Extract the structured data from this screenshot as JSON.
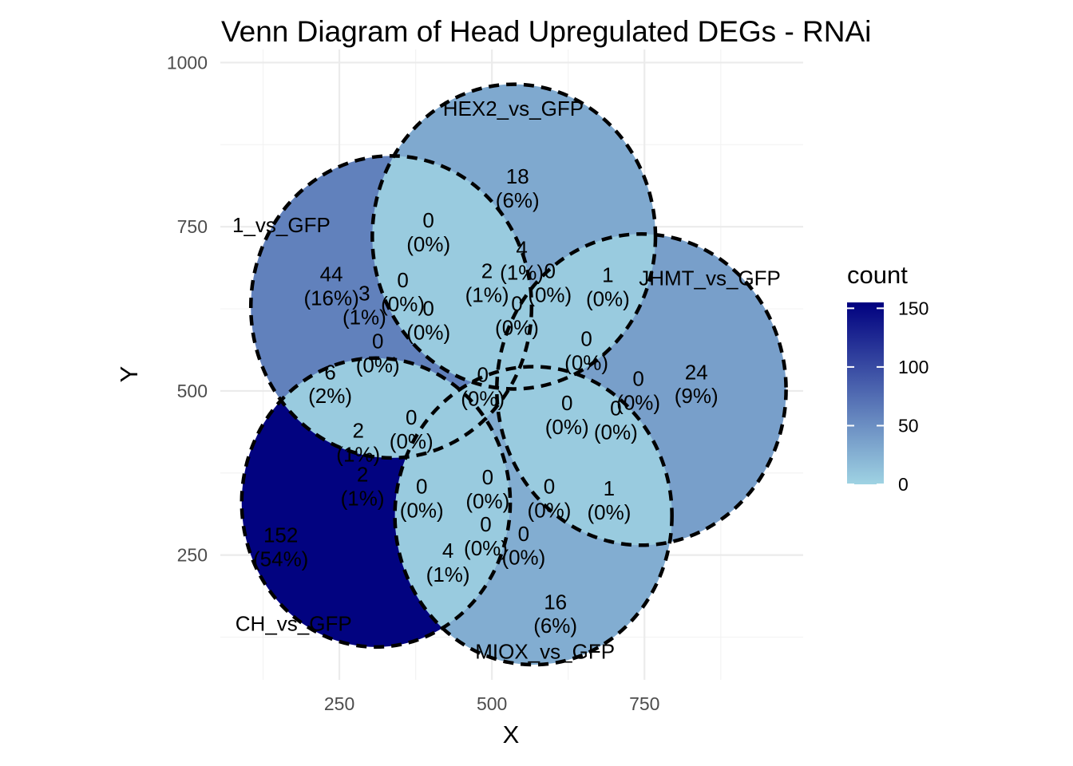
{
  "chart_data": {
    "type": "venn",
    "title": "Venn Diagram of Head Upregulated DEGs - RNAi",
    "xlabel": "X",
    "ylabel": "Y",
    "xlim": [
      55,
      1010
    ],
    "ylim": [
      60,
      1020
    ],
    "x_ticks": [
      250,
      500,
      750
    ],
    "y_ticks": [
      250,
      500,
      750,
      1000
    ],
    "grid": true,
    "legend": {
      "title": "count",
      "placement": "right",
      "min": 0,
      "max": 155,
      "ticks": [
        0,
        50,
        100,
        150
      ],
      "color_low": "#9fd3e3",
      "color_high": "#00007f"
    },
    "sets": [
      {
        "name": "HEX2_vs_GFP",
        "count": 18,
        "percent": "(6%)",
        "label_x": 535,
        "label_y": 919,
        "cx": 536,
        "cy": 735,
        "r": 232
      },
      {
        "name": "JHMT_vs_GFP",
        "count": 24,
        "percent": "(9%)",
        "label_x": 857,
        "label_y": 661,
        "cx": 745,
        "cy": 502,
        "r": 237
      },
      {
        "name": "MIOX_vs_GFP",
        "count": 16,
        "percent": "(6%)",
        "label_x": 587,
        "label_y": 92,
        "cx": 568,
        "cy": 310,
        "r": 227
      },
      {
        "name": "CH_vs_GFP",
        "count": 152,
        "percent": "(54%)",
        "label_x": 175,
        "label_y": 135,
        "cx": 310,
        "cy": 330,
        "r": 220
      },
      {
        "name": "1_vs_GFP",
        "count": 44,
        "percent": "(16%)",
        "label_x": 155,
        "label_y": 742,
        "cx": 335,
        "cy": 628,
        "r": 230
      }
    ],
    "regions": [
      {
        "count": "18",
        "percent": "(6%)",
        "x": 542,
        "y": 811
      },
      {
        "count": "44",
        "percent": "(16%)",
        "x": 237,
        "y": 662
      },
      {
        "count": "24",
        "percent": "(9%)",
        "x": 835,
        "y": 513
      },
      {
        "count": "152",
        "percent": "(54%)",
        "x": 154,
        "y": 265
      },
      {
        "count": "16",
        "percent": "(6%)",
        "x": 604,
        "y": 163
      },
      {
        "count": "0",
        "percent": "(0%)",
        "x": 396,
        "y": 744
      },
      {
        "count": "4",
        "percent": "(1%)",
        "x": 549,
        "y": 701
      },
      {
        "count": "2",
        "percent": "(1%)",
        "x": 492,
        "y": 667
      },
      {
        "count": "0",
        "percent": "(0%)",
        "x": 595,
        "y": 667
      },
      {
        "count": "1",
        "percent": "(0%)",
        "x": 690,
        "y": 661
      },
      {
        "count": "0",
        "percent": "(0%)",
        "x": 354,
        "y": 653
      },
      {
        "count": "3",
        "percent": "(1%)",
        "x": 291,
        "y": 633
      },
      {
        "count": "0",
        "percent": "(0%)",
        "x": 396,
        "y": 610
      },
      {
        "count": "0",
        "percent": "(0%)",
        "x": 541,
        "y": 617
      },
      {
        "count": "0",
        "percent": "(0%)",
        "x": 313,
        "y": 560
      },
      {
        "count": "0",
        "percent": "(0%)",
        "x": 655,
        "y": 564
      },
      {
        "count": "6",
        "percent": "(2%)",
        "x": 235,
        "y": 513
      },
      {
        "count": "0",
        "percent": "(0%)",
        "x": 485,
        "y": 509
      },
      {
        "count": "0",
        "percent": "(0%)",
        "x": 740,
        "y": 503
      },
      {
        "count": "0",
        "percent": "(0%)",
        "x": 623,
        "y": 466
      },
      {
        "count": "0",
        "percent": "(0%)",
        "x": 703,
        "y": 458
      },
      {
        "count": "0",
        "percent": "(0%)",
        "x": 368,
        "y": 444
      },
      {
        "count": "2",
        "percent": "(1%)",
        "x": 281,
        "y": 424
      },
      {
        "count": "2",
        "percent": "(1%)",
        "x": 288,
        "y": 357
      },
      {
        "count": "0",
        "percent": "(0%)",
        "x": 385,
        "y": 339
      },
      {
        "count": "0",
        "percent": "(0%)",
        "x": 493,
        "y": 353
      },
      {
        "count": "0",
        "percent": "(0%)",
        "x": 594,
        "y": 339
      },
      {
        "count": "1",
        "percent": "(0%)",
        "x": 692,
        "y": 336
      },
      {
        "count": "0",
        "percent": "(0%)",
        "x": 490,
        "y": 281
      },
      {
        "count": "0",
        "percent": "(0%)",
        "x": 552,
        "y": 267
      },
      {
        "count": "4",
        "percent": "(1%)",
        "x": 428,
        "y": 241
      }
    ]
  }
}
